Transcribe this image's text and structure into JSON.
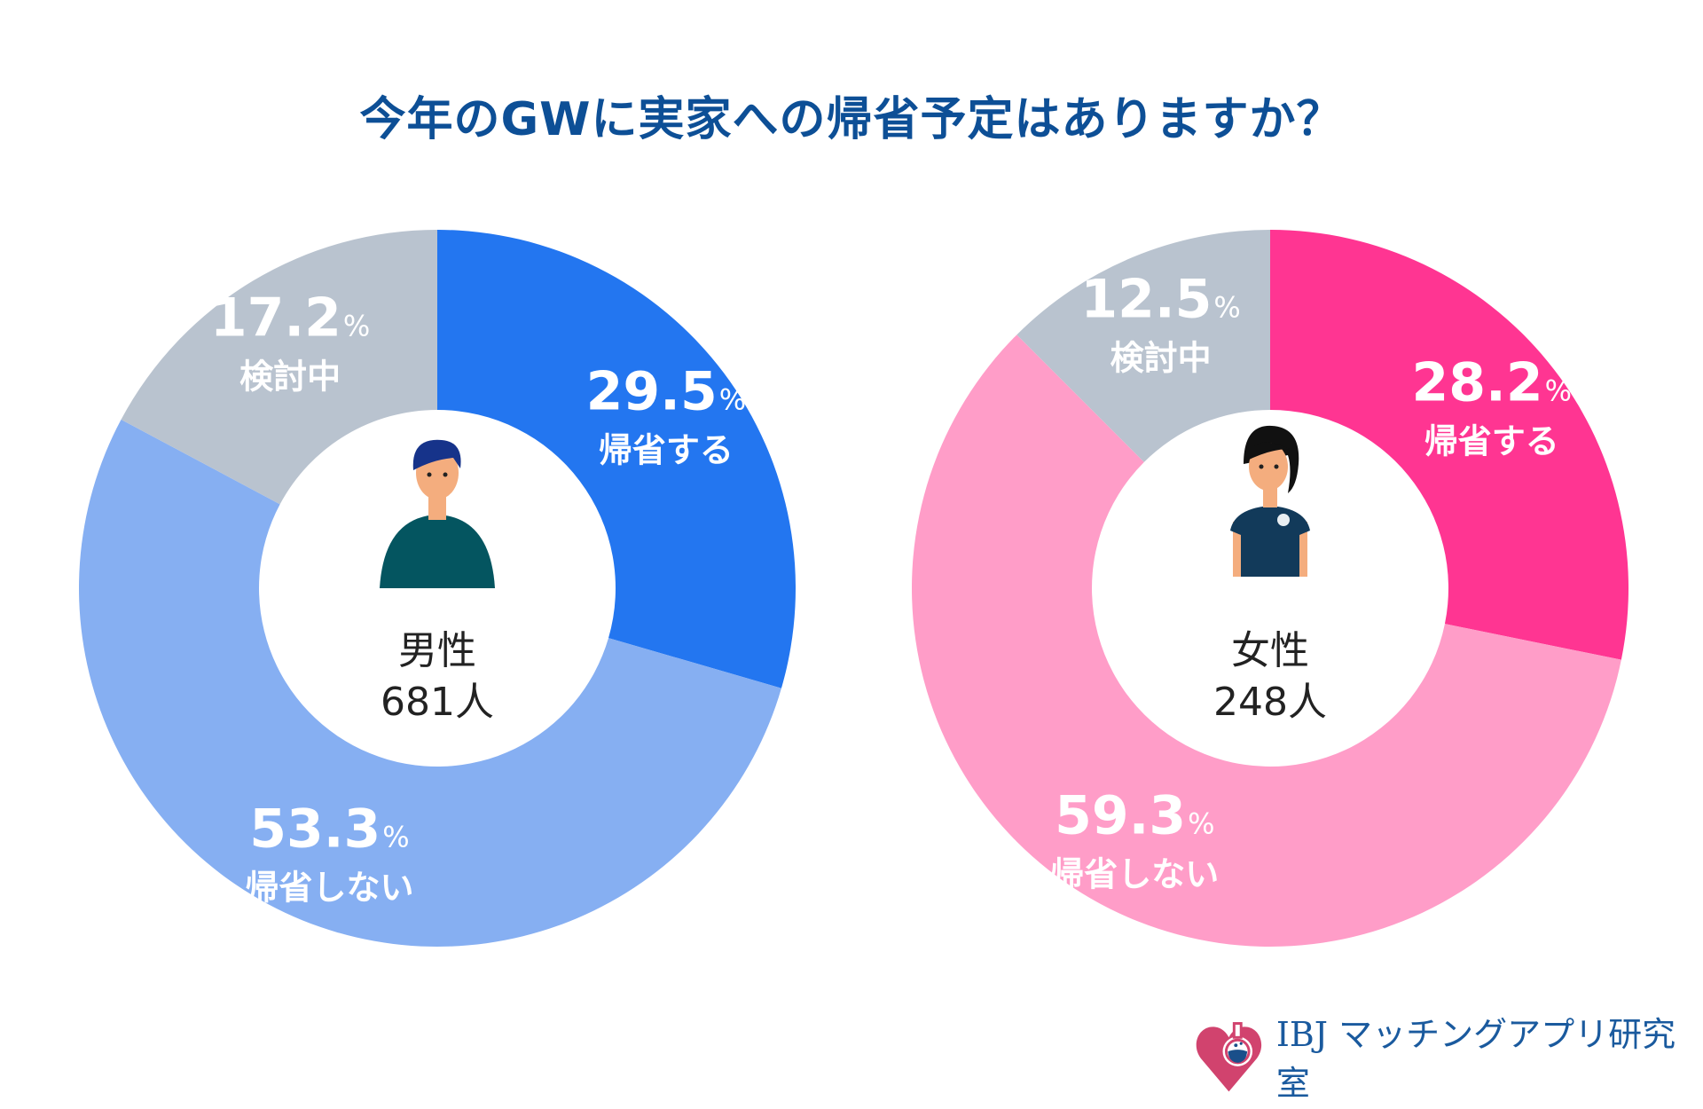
{
  "title": "今年のGWに実家への帰省予定はありますか？",
  "chart_data": [
    {
      "type": "pie",
      "center_label": "男性",
      "center_count": "681人",
      "categories": [
        "帰省する",
        "帰省しない",
        "検討中"
      ],
      "values": [
        29.5,
        53.3,
        17.2
      ],
      "unit": "%",
      "colors": [
        "#2376f0",
        "#86aff2",
        "#b9c3cf"
      ]
    },
    {
      "type": "pie",
      "center_label": "女性",
      "center_count": "248人",
      "categories": [
        "帰省する",
        "帰省しない",
        "検討中"
      ],
      "values": [
        28.2,
        59.3,
        12.5
      ],
      "unit": "%",
      "colors": [
        "#ff3592",
        "#ff9dc8",
        "#b9c3cf"
      ]
    }
  ],
  "logo": {
    "text": "IBJ マッチングアプリ研究室",
    "color": "#1a5a9e",
    "icon": "heart-flask-icon"
  }
}
